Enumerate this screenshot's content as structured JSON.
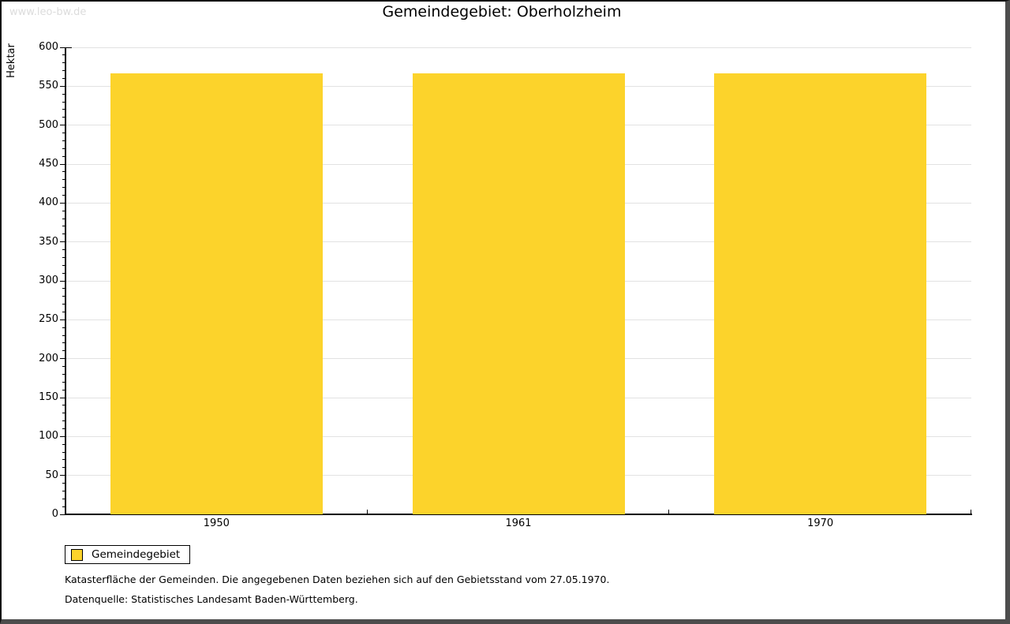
{
  "watermark": "www.leo-bw.de",
  "chart_data": {
    "type": "bar",
    "title": "Gemeindegebiet: Oberholzheim",
    "xlabel": "",
    "ylabel": "Hektar",
    "categories": [
      "1950",
      "1961",
      "1970"
    ],
    "series": [
      {
        "name": "Gemeindegebiet",
        "values": [
          567,
          567,
          567
        ],
        "color": "#FCD32B"
      }
    ],
    "ylim": [
      0,
      600
    ],
    "y_major_step": 50,
    "y_minor_step": 10,
    "grid": "horizontal-major-lines",
    "legend_position": "bottom-left"
  },
  "footnotes": [
    "Katasterfläche der Gemeinden. Die angegebenen Daten beziehen sich auf den Gebietsstand vom 27.05.1970.",
    "Datenquelle: Statistisches Landesamt Baden-Württemberg."
  ],
  "colors": {
    "bar": "#FCD32B",
    "grid": "#E2E2E2",
    "axis": "#000000",
    "watermark": "#DCDCDC",
    "frame": "#4D4D4D"
  }
}
